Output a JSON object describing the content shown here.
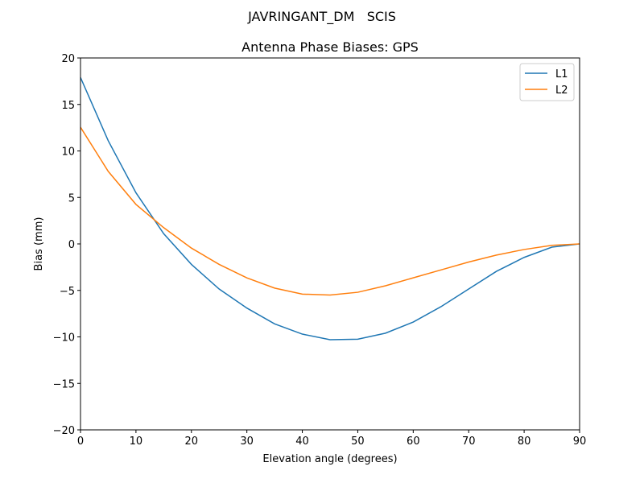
{
  "chart_data": {
    "type": "line",
    "suptitle": "JAVRINGANT_DM   SCIS",
    "title": "Antenna Phase Biases: GPS",
    "xlabel": "Elevation angle (degrees)",
    "ylabel": "Bias (mm)",
    "xlim": [
      0,
      90
    ],
    "ylim": [
      -20,
      20
    ],
    "xticks": [
      0,
      10,
      20,
      30,
      40,
      50,
      60,
      70,
      80,
      90
    ],
    "yticks": [
      -20,
      -15,
      -10,
      -5,
      0,
      5,
      10,
      15,
      20
    ],
    "grid": false,
    "legend": "top-right",
    "x": [
      0,
      5,
      10,
      15,
      20,
      25,
      30,
      35,
      40,
      45,
      50,
      55,
      60,
      65,
      70,
      75,
      80,
      85,
      90
    ],
    "series": [
      {
        "name": "L1",
        "color": "#1f77b4",
        "values": [
          17.9,
          11.1,
          5.5,
          1.1,
          -2.2,
          -4.85,
          -6.9,
          -8.6,
          -9.7,
          -10.3,
          -10.25,
          -9.6,
          -8.4,
          -6.75,
          -4.85,
          -2.95,
          -1.45,
          -0.35,
          0
        ]
      },
      {
        "name": "L2",
        "color": "#ff7f0e",
        "values": [
          12.55,
          7.8,
          4.25,
          1.75,
          -0.45,
          -2.2,
          -3.65,
          -4.75,
          -5.4,
          -5.5,
          -5.2,
          -4.5,
          -3.65,
          -2.8,
          -1.95,
          -1.2,
          -0.6,
          -0.15,
          0
        ]
      }
    ]
  }
}
